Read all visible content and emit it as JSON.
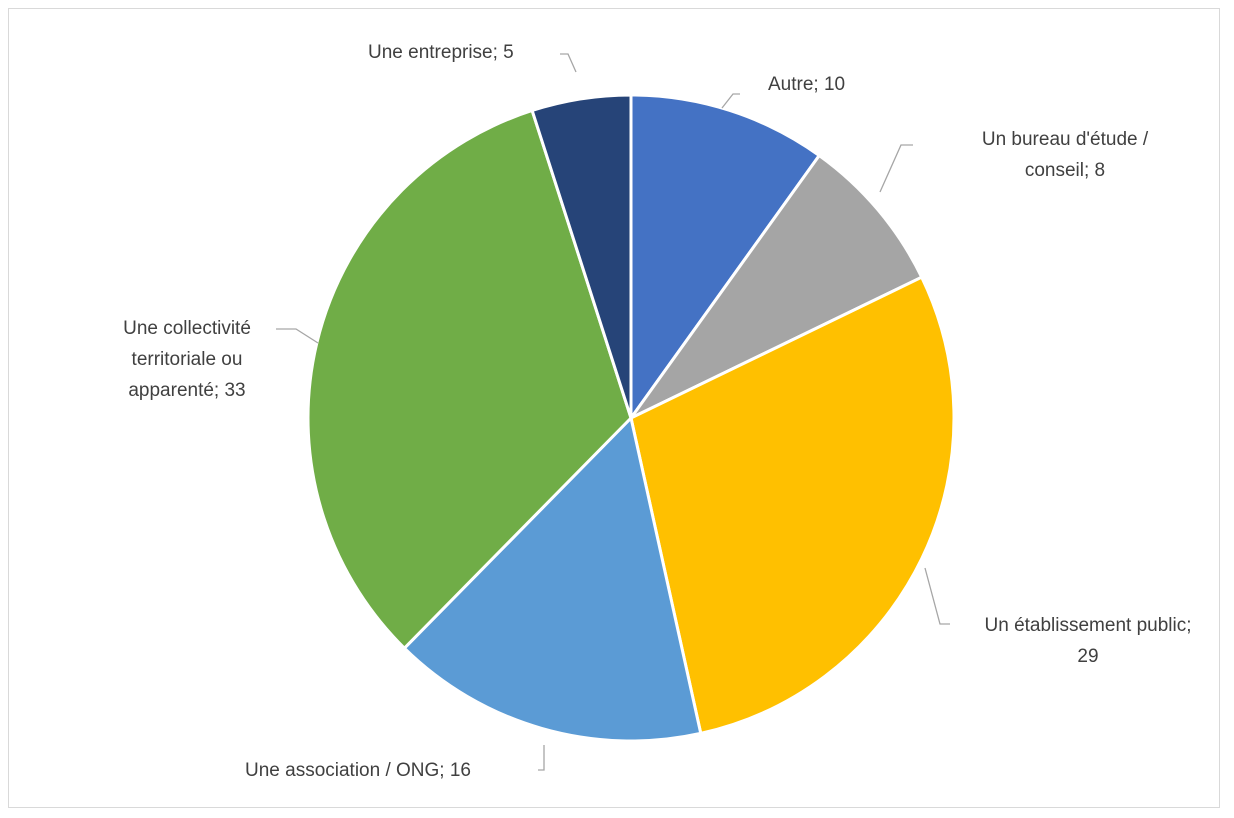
{
  "chart_data": {
    "type": "pie",
    "title": "",
    "start_angle_deg": 0,
    "direction": "clockwise",
    "slices": [
      {
        "label": "Autre",
        "label_lines": [
          "Autre; 10"
        ],
        "value": 10,
        "color": "#4472C4"
      },
      {
        "label": "Un bureau d'étude / conseil",
        "label_lines": [
          "Un bureau d'étude /",
          "conseil; 8"
        ],
        "value": 8,
        "color": "#A5A5A5"
      },
      {
        "label": "Un établissement public",
        "label_lines": [
          "Un établissement public;",
          "29"
        ],
        "value": 29,
        "color": "#FFC000"
      },
      {
        "label": "Une association / ONG",
        "label_lines": [
          "Une association / ONG; 16"
        ],
        "value": 16,
        "color": "#5B9BD5"
      },
      {
        "label": "Une collectivité territoriale ou apparenté",
        "label_lines": [
          "Une collectivité",
          "territoriale ou",
          "apparenté; 33"
        ],
        "value": 33,
        "color": "#70AD47"
      },
      {
        "label": "Une entreprise",
        "label_lines": [
          "Une entreprise; 5"
        ],
        "value": 5,
        "color": "#264478"
      }
    ]
  }
}
